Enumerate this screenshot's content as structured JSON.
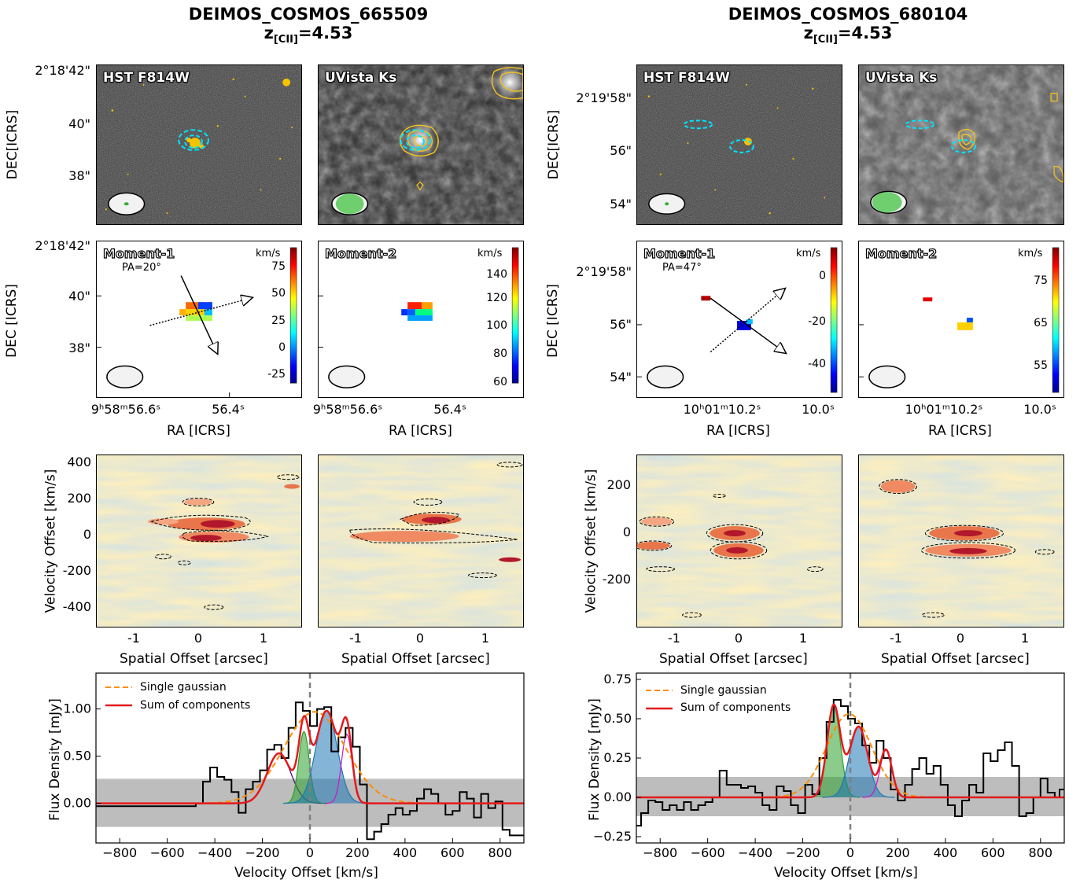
{
  "targets": [
    {
      "name": "DEIMOS_COSMOS_665509",
      "z_prefix": "z",
      "z_sub": "[CII]",
      "z_value": "=4.53"
    },
    {
      "name": "DEIMOS_COSMOS_680104",
      "z_prefix": "z",
      "z_sub": "[CII]",
      "z_value": "=4.53"
    }
  ],
  "image_labels": {
    "hst": "HST F814W",
    "uvista": "UVista Ks",
    "mom1": "Moment-1",
    "mom2": "Moment-2",
    "kms": "km/s"
  },
  "axis_labels": {
    "dec1": "DEC[ICRS]",
    "dec2": "DEC [ICRS]",
    "ra": "RA [ICRS]",
    "velocity_offset": "Velocity Offset [km/s]",
    "spatial_offset": "Spatial Offset [arcsec]",
    "flux_density": "Flux Density [mJy]",
    "velocity_offset_x": "Velocity Offset [km/s]"
  },
  "left": {
    "dec_ticks": [
      "2°18'42\"",
      "40\"",
      "38\""
    ],
    "ra_ticks": [
      "9ʰ58ᵐ56.6ˢ",
      "56.4ˢ"
    ],
    "pa": "PA=20°",
    "mom1_ticks": [
      "75",
      "50",
      "25",
      "0",
      "-25"
    ],
    "mom2_ticks": [
      "140",
      "120",
      "100",
      "80",
      "60"
    ],
    "pv_y_ticks": [
      "400",
      "200",
      "0",
      "-200",
      "-400"
    ],
    "pv_x_ticks": [
      "-1",
      "0",
      "1"
    ]
  },
  "right": {
    "dec_ticks": [
      "2°19'58\"",
      "56\"",
      "54\""
    ],
    "ra_ticks": [
      "10ʰ01ᵐ10.2ˢ",
      "10.0ˢ"
    ],
    "pa": "PA=47°",
    "mom1_ticks": [
      "0",
      "-20",
      "-40"
    ],
    "mom2_ticks": [
      "75",
      "65",
      "55"
    ],
    "pv_y_ticks": [
      "200",
      "0",
      "-200"
    ],
    "pv_x_ticks": [
      "-1",
      "0",
      "1"
    ]
  },
  "colors": {
    "single_gaussian": "#ff8c00",
    "sum_components": "#e31a1c",
    "data": "#000000",
    "noise_band": "#bdbdbd",
    "green": "#2ca02c",
    "blue": "#1f77b4",
    "purple": "#3f007d",
    "magenta": "#c51bc5"
  },
  "chart_data": [
    {
      "type": "line",
      "title": "",
      "xlabel": "Velocity Offset [km/s]",
      "ylabel": "Flux Density [mJy]",
      "xlim": [
        -900,
        900
      ],
      "ylim": [
        -0.42,
        1.38
      ],
      "x_ticks": [
        -800,
        -600,
        -400,
        -200,
        0,
        200,
        400,
        600,
        800
      ],
      "y_ticks": [
        0.0,
        0.5,
        1.0
      ],
      "y_tick_labels": [
        "0.00",
        "0.50",
        "1.00"
      ],
      "legend": [
        "Single gaussian",
        "Sum of components"
      ],
      "legend_position": "top-left",
      "noise_band": [
        -0.25,
        0.26
      ],
      "vline": 0,
      "series": [
        {
          "name": "Single gaussian",
          "style": "dashed",
          "color": "orange",
          "gauss": [
            {
              "a": 0.97,
              "mu": 20,
              "sigma": 130
            }
          ]
        },
        {
          "name": "Sum of components",
          "style": "solid",
          "color": "red",
          "gauss": [
            {
              "a": 0.53,
              "mu": -130,
              "sigma": 50
            },
            {
              "a": 0.76,
              "mu": -25,
              "sigma": 22
            },
            {
              "a": 0.98,
              "mu": 70,
              "sigma": 45
            },
            {
              "a": 0.73,
              "mu": 155,
              "sigma": 22
            }
          ]
        }
      ],
      "components": [
        {
          "a": 0.53,
          "mu": -130,
          "sigma": 50,
          "color": "purple",
          "filled": false
        },
        {
          "a": 0.76,
          "mu": -25,
          "sigma": 22,
          "color": "green",
          "filled": true
        },
        {
          "a": 0.98,
          "mu": 70,
          "sigma": 45,
          "color": "blue",
          "filled": true
        },
        {
          "a": 0.73,
          "mu": 155,
          "sigma": 22,
          "color": "magenta",
          "filled": false
        }
      ],
      "spectrum": {
        "x": [
          -900,
          -870,
          -840,
          -810,
          -780,
          -750,
          -720,
          -690,
          -660,
          -630,
          -600,
          -570,
          -540,
          -510,
          -480,
          -450,
          -420,
          -390,
          -360,
          -330,
          -300,
          -270,
          -240,
          -210,
          -180,
          -150,
          -120,
          -90,
          -60,
          -30,
          0,
          30,
          60,
          90,
          120,
          150,
          180,
          210,
          240,
          270,
          300,
          330,
          360,
          390,
          420,
          450,
          480,
          510,
          540,
          570,
          600,
          630,
          660,
          690,
          720,
          750,
          780,
          810,
          840,
          870
        ],
        "y": [
          -0.03,
          -0.03,
          -0.03,
          -0.03,
          -0.03,
          -0.03,
          -0.03,
          -0.03,
          -0.03,
          -0.03,
          -0.03,
          -0.03,
          -0.03,
          -0.03,
          0.0,
          0.23,
          0.38,
          0.28,
          0.25,
          0.12,
          -0.1,
          0.15,
          0.23,
          0.35,
          0.57,
          0.62,
          0.48,
          0.8,
          1.07,
          0.98,
          0.82,
          1.0,
          1.02,
          0.55,
          0.7,
          0.8,
          0.6,
          0.2,
          -0.38,
          -0.3,
          -0.22,
          -0.12,
          -0.05,
          -0.12,
          -0.08,
          0.05,
          0.15,
          0.1,
          0.0,
          -0.12,
          -0.08,
          0.12,
          0.05,
          -0.15,
          0.1,
          -0.05,
          0.02,
          -0.28,
          -0.34,
          -0.34
        ]
      }
    },
    {
      "type": "line",
      "title": "",
      "xlabel": "Velocity Offset [km/s]",
      "ylabel": "Flux Density [mJy]",
      "xlim": [
        -900,
        900
      ],
      "ylim": [
        -0.29,
        0.79
      ],
      "x_ticks": [
        -800,
        -600,
        -400,
        -200,
        0,
        200,
        400,
        600,
        800
      ],
      "y_ticks": [
        -0.25,
        0.0,
        0.25,
        0.5,
        0.75
      ],
      "y_tick_labels": [
        "-0.25",
        "0.00",
        "0.25",
        "0.50",
        "0.75"
      ],
      "legend": [
        "Single gaussian",
        "Sum of components"
      ],
      "legend_position": "top-left",
      "noise_band": [
        -0.12,
        0.13
      ],
      "vline": 0,
      "series": [
        {
          "name": "Single gaussian",
          "style": "dashed",
          "color": "orange",
          "gauss": [
            {
              "a": 0.53,
              "mu": -5,
              "sigma": 95
            }
          ]
        },
        {
          "name": "Sum of components",
          "style": "solid",
          "color": "red",
          "gauss": [
            {
              "a": 0.58,
              "mu": -70,
              "sigma": 28
            },
            {
              "a": 0.45,
              "mu": 35,
              "sigma": 38
            },
            {
              "a": 0.3,
              "mu": 150,
              "sigma": 25
            }
          ]
        }
      ],
      "components": [
        {
          "a": 0.58,
          "mu": -70,
          "sigma": 28,
          "color": "green",
          "filled": true
        },
        {
          "a": 0.45,
          "mu": 35,
          "sigma": 38,
          "color": "blue",
          "filled": true
        },
        {
          "a": 0.3,
          "mu": 150,
          "sigma": 25,
          "color": "magenta",
          "filled": false
        }
      ],
      "spectrum": {
        "x": [
          -900,
          -880,
          -850,
          -820,
          -790,
          -760,
          -730,
          -700,
          -670,
          -640,
          -610,
          -580,
          -550,
          -520,
          -490,
          -460,
          -430,
          -400,
          -370,
          -340,
          -310,
          -280,
          -250,
          -220,
          -190,
          -160,
          -130,
          -100,
          -70,
          -40,
          -10,
          20,
          50,
          80,
          110,
          140,
          170,
          200,
          230,
          260,
          290,
          320,
          350,
          380,
          410,
          440,
          470,
          500,
          530,
          560,
          590,
          620,
          650,
          680,
          710,
          740,
          770,
          800,
          830,
          860,
          880
        ],
        "y": [
          -0.18,
          -0.1,
          -0.02,
          -0.03,
          -0.08,
          -0.05,
          -0.08,
          -0.03,
          -0.08,
          -0.05,
          -0.03,
          0.0,
          0.17,
          0.08,
          0.08,
          0.06,
          0.07,
          0.03,
          -0.05,
          -0.08,
          0.07,
          0.04,
          -0.05,
          -0.1,
          0.08,
          0.02,
          0.25,
          0.48,
          0.62,
          0.58,
          0.5,
          0.47,
          0.33,
          0.22,
          0.36,
          0.25,
          0.05,
          -0.02,
          0.08,
          0.18,
          0.25,
          0.15,
          0.2,
          0.08,
          -0.05,
          -0.12,
          -0.02,
          0.08,
          0.03,
          0.28,
          0.23,
          0.3,
          0.35,
          0.2,
          -0.12,
          -0.1,
          0.0,
          0.12,
          0.03,
          0.0,
          0.05
        ]
      }
    }
  ]
}
